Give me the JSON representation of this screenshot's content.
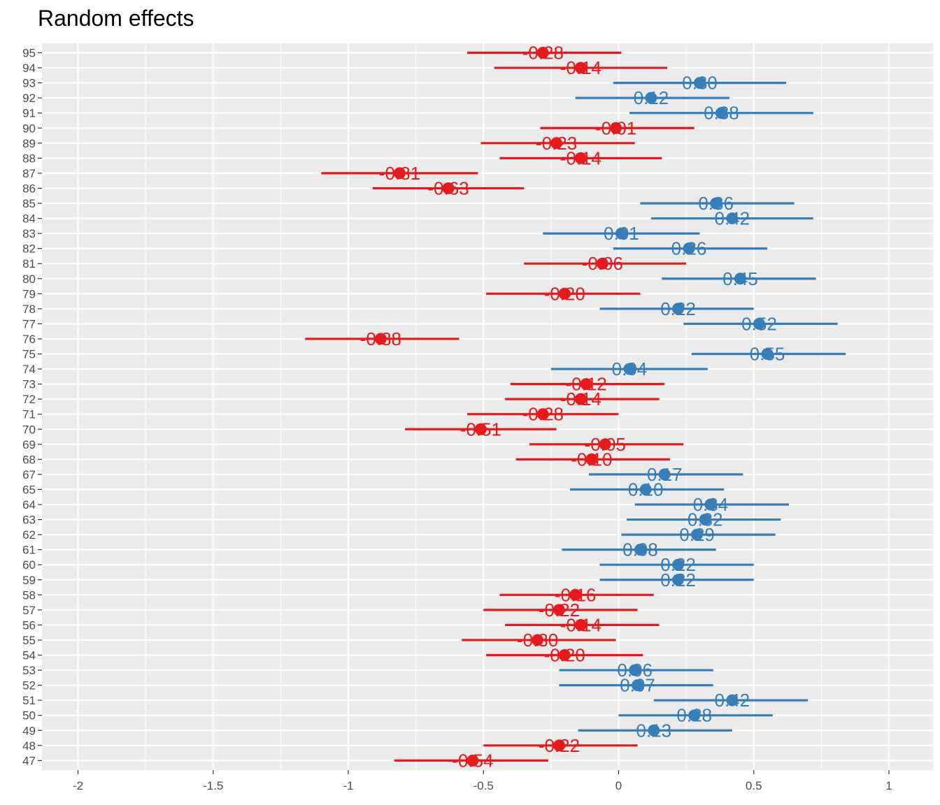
{
  "chart_data": {
    "type": "scatter",
    "title": "Random effects",
    "xlabel": "",
    "ylabel": "",
    "xlim": [
      -2.2,
      1.2
    ],
    "x_ticks": [
      -2,
      -1.5,
      -1,
      -0.5,
      0,
      0.5,
      1
    ],
    "x_tick_labels": [
      "-2",
      "-1.5",
      "-1",
      "-0.5",
      "0",
      "0.5",
      "1"
    ],
    "grid": true,
    "legend": "none",
    "colors": {
      "positive": "#377EB8",
      "negative": "#E41A1C",
      "panel": "#EBEBEB",
      "grid": "#FFFFFF"
    },
    "points": [
      {
        "id": "95",
        "estimate": -0.28,
        "low": -0.56,
        "high": 0.01,
        "label": "-0.28"
      },
      {
        "id": "94",
        "estimate": -0.14,
        "low": -0.46,
        "high": 0.18,
        "label": "-0.14"
      },
      {
        "id": "93",
        "estimate": 0.3,
        "low": -0.02,
        "high": 0.62,
        "label": "0.30"
      },
      {
        "id": "92",
        "estimate": 0.12,
        "low": -0.16,
        "high": 0.41,
        "label": "0.12"
      },
      {
        "id": "91",
        "estimate": 0.38,
        "low": 0.04,
        "high": 0.72,
        "label": "0.38"
      },
      {
        "id": "90",
        "estimate": -0.01,
        "low": -0.29,
        "high": 0.28,
        "label": "-0.01"
      },
      {
        "id": "89",
        "estimate": -0.23,
        "low": -0.51,
        "high": 0.06,
        "label": "-0.23"
      },
      {
        "id": "88",
        "estimate": -0.14,
        "low": -0.44,
        "high": 0.16,
        "label": "-0.14"
      },
      {
        "id": "87",
        "estimate": -0.81,
        "low": -1.1,
        "high": -0.52,
        "label": "-0.81"
      },
      {
        "id": "86",
        "estimate": -0.63,
        "low": -0.91,
        "high": -0.35,
        "label": "-0.63"
      },
      {
        "id": "85",
        "estimate": 0.36,
        "low": 0.08,
        "high": 0.65,
        "label": "0.36"
      },
      {
        "id": "84",
        "estimate": 0.42,
        "low": 0.12,
        "high": 0.72,
        "label": "0.42"
      },
      {
        "id": "83",
        "estimate": 0.01,
        "low": -0.28,
        "high": 0.3,
        "label": "0.01"
      },
      {
        "id": "82",
        "estimate": 0.26,
        "low": -0.02,
        "high": 0.55,
        "label": "0.26"
      },
      {
        "id": "81",
        "estimate": -0.06,
        "low": -0.35,
        "high": 0.25,
        "label": "-0.06"
      },
      {
        "id": "80",
        "estimate": 0.45,
        "low": 0.16,
        "high": 0.73,
        "label": "0.45"
      },
      {
        "id": "79",
        "estimate": -0.2,
        "low": -0.49,
        "high": 0.08,
        "label": "-0.20"
      },
      {
        "id": "78",
        "estimate": 0.22,
        "low": -0.07,
        "high": 0.5,
        "label": "0.22"
      },
      {
        "id": "77",
        "estimate": 0.52,
        "low": 0.24,
        "high": 0.81,
        "label": "0.52"
      },
      {
        "id": "76",
        "estimate": -0.88,
        "low": -1.16,
        "high": -0.59,
        "label": "-0.88"
      },
      {
        "id": "75",
        "estimate": 0.55,
        "low": 0.27,
        "high": 0.84,
        "label": "0.55"
      },
      {
        "id": "74",
        "estimate": 0.04,
        "low": -0.25,
        "high": 0.33,
        "label": "0.04"
      },
      {
        "id": "73",
        "estimate": -0.12,
        "low": -0.4,
        "high": 0.17,
        "label": "-0.12"
      },
      {
        "id": "72",
        "estimate": -0.14,
        "low": -0.42,
        "high": 0.15,
        "label": "-0.14"
      },
      {
        "id": "71",
        "estimate": -0.28,
        "low": -0.56,
        "high": 0.0,
        "label": "-0.28"
      },
      {
        "id": "70",
        "estimate": -0.51,
        "low": -0.79,
        "high": -0.23,
        "label": "-0.51"
      },
      {
        "id": "69",
        "estimate": -0.05,
        "low": -0.33,
        "high": 0.24,
        "label": "-0.05"
      },
      {
        "id": "68",
        "estimate": -0.1,
        "low": -0.38,
        "high": 0.19,
        "label": "-0.10"
      },
      {
        "id": "67",
        "estimate": 0.17,
        "low": -0.11,
        "high": 0.46,
        "label": "0.17"
      },
      {
        "id": "65",
        "estimate": 0.1,
        "low": -0.18,
        "high": 0.39,
        "label": "0.10"
      },
      {
        "id": "64",
        "estimate": 0.34,
        "low": 0.06,
        "high": 0.63,
        "label": "0.34"
      },
      {
        "id": "63",
        "estimate": 0.32,
        "low": 0.03,
        "high": 0.6,
        "label": "0.32"
      },
      {
        "id": "62",
        "estimate": 0.29,
        "low": 0.01,
        "high": 0.58,
        "label": "0.29"
      },
      {
        "id": "61",
        "estimate": 0.08,
        "low": -0.21,
        "high": 0.36,
        "label": "0.08"
      },
      {
        "id": "60",
        "estimate": 0.22,
        "low": -0.07,
        "high": 0.5,
        "label": "0.22"
      },
      {
        "id": "59",
        "estimate": 0.22,
        "low": -0.07,
        "high": 0.5,
        "label": "0.22"
      },
      {
        "id": "58",
        "estimate": -0.16,
        "low": -0.44,
        "high": 0.13,
        "label": "-0.16"
      },
      {
        "id": "57",
        "estimate": -0.22,
        "low": -0.5,
        "high": 0.07,
        "label": "-0.22"
      },
      {
        "id": "56",
        "estimate": -0.14,
        "low": -0.42,
        "high": 0.15,
        "label": "-0.14"
      },
      {
        "id": "55",
        "estimate": -0.3,
        "low": -0.58,
        "high": -0.01,
        "label": "-0.30"
      },
      {
        "id": "54",
        "estimate": -0.2,
        "low": -0.49,
        "high": 0.09,
        "label": "-0.20"
      },
      {
        "id": "53",
        "estimate": 0.06,
        "low": -0.22,
        "high": 0.35,
        "label": "0.06"
      },
      {
        "id": "52",
        "estimate": 0.07,
        "low": -0.22,
        "high": 0.35,
        "label": "0.07"
      },
      {
        "id": "51",
        "estimate": 0.42,
        "low": 0.13,
        "high": 0.7,
        "label": "0.42"
      },
      {
        "id": "50",
        "estimate": 0.28,
        "low": 0.0,
        "high": 0.57,
        "label": "0.28"
      },
      {
        "id": "49",
        "estimate": 0.13,
        "low": -0.15,
        "high": 0.42,
        "label": "0.13"
      },
      {
        "id": "48",
        "estimate": -0.22,
        "low": -0.5,
        "high": 0.07,
        "label": "-0.22"
      },
      {
        "id": "47",
        "estimate": -0.54,
        "low": -0.83,
        "high": -0.26,
        "label": "-0.54"
      }
    ]
  }
}
